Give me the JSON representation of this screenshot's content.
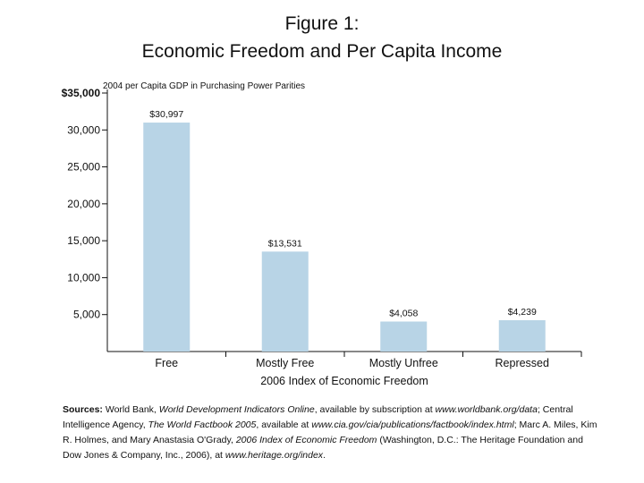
{
  "figure": {
    "number": "Figure 1:",
    "title": "Economic Freedom and Per Capita Income"
  },
  "chart_data": {
    "type": "bar",
    "categories": [
      "Free",
      "Mostly Free",
      "Mostly Unfree",
      "Repressed"
    ],
    "values": [
      30997,
      13531,
      4058,
      4239
    ],
    "data_labels": [
      "$30,997",
      "$13,531",
      "$4,058",
      "$4,239"
    ],
    "ylabel": "2004 per Capita GDP in Purchasing Power Parities",
    "xlabel": "2006 Index of Economic Freedom",
    "ylim": [
      0,
      35000
    ],
    "yticks": [
      5000,
      10000,
      15000,
      20000,
      25000,
      30000,
      35000
    ],
    "ytick_labels": [
      "5,000",
      "10,000",
      "15,000",
      "20,000",
      "25,000",
      "30,000",
      "$35,000"
    ],
    "grid": false,
    "bar_color": "#b8d4e6"
  },
  "sources": {
    "label": "Sources:",
    "p1": " World Bank, ",
    "p2": "World Development Indicators Online",
    "p3": ", available by subscription at ",
    "p4": "www.worldbank.org/data",
    "p5": "; Central Intelligence Agency, ",
    "p6": "The World Factbook 2005",
    "p7": ", available at ",
    "p8": "www.cia.gov/cia/publications/factbook/index.html",
    "p9": "; Marc A. Miles, Kim R. Holmes, and Mary Anastasia O'Grady, ",
    "p10": "2006 Index of Economic Freedom",
    "p11": " (Washington, D.C.: The Heritage Foundation and Dow Jones & Company, Inc., 2006), at ",
    "p12": "www.heritage.org/index",
    "p13": "."
  }
}
